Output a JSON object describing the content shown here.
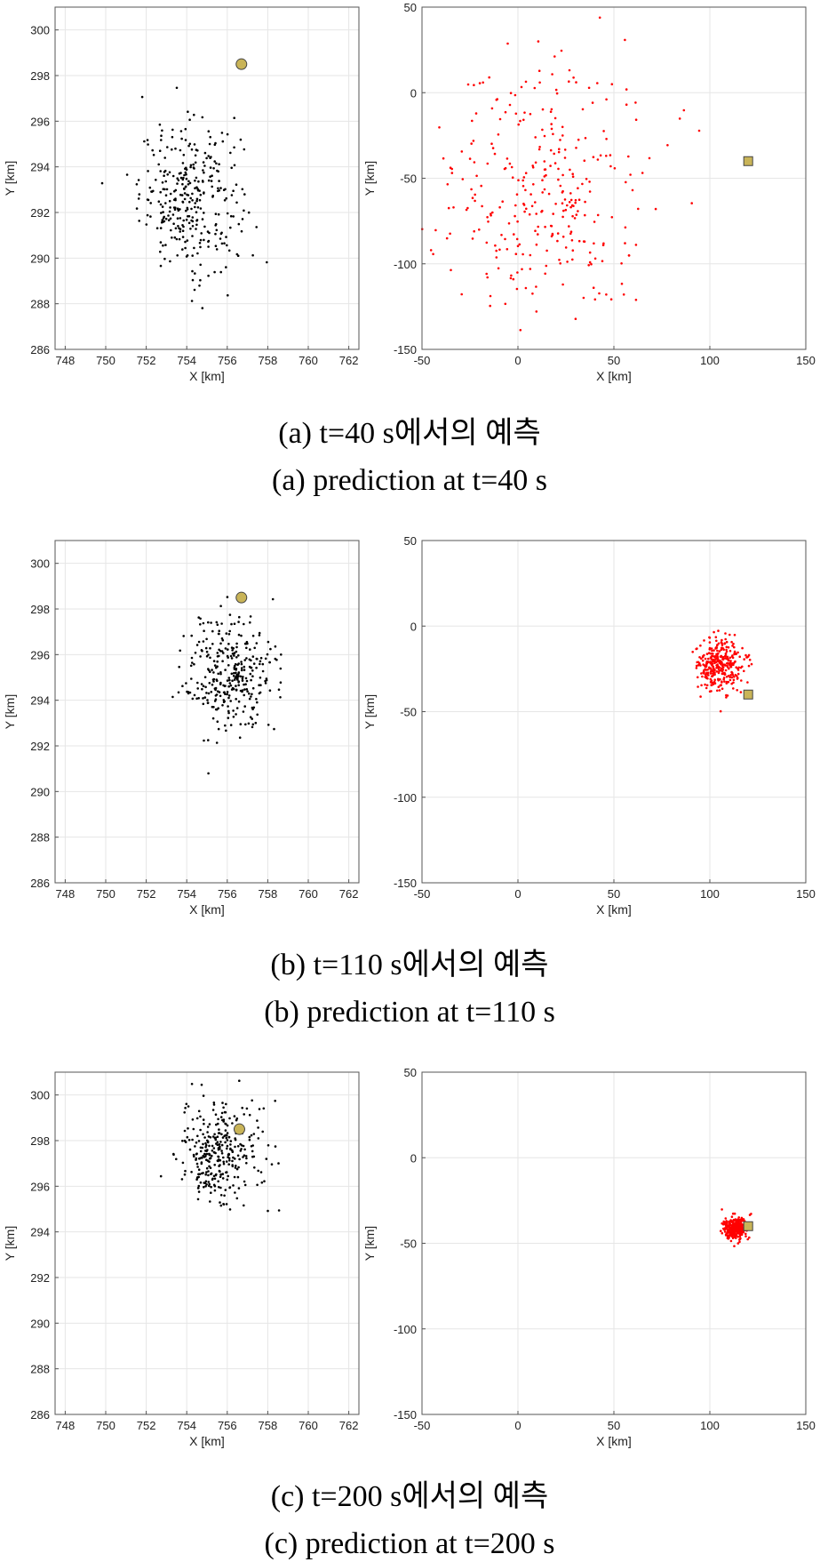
{
  "chart_data": [
    {
      "id": "a-left",
      "type": "scatter",
      "xlabel": "X [km]",
      "ylabel": "Y [km]",
      "xlim": [
        747.5,
        762.5
      ],
      "ylim": [
        286,
        301
      ],
      "xticks": [
        748,
        750,
        752,
        754,
        756,
        758,
        760,
        762
      ],
      "yticks": [
        286,
        288,
        290,
        292,
        294,
        296,
        298,
        300
      ],
      "cluster": {
        "center": [
          754.2,
          292.7
        ],
        "spread": [
          1.25,
          1.6
        ],
        "count": 330,
        "color": "#000000"
      },
      "marker": {
        "x": 756.7,
        "y": 298.5,
        "shape": "circle",
        "color": "#c9b458"
      },
      "grid": true
    },
    {
      "id": "a-right",
      "type": "scatter",
      "xlabel": "X [km]",
      "ylabel": "Y [km]",
      "xlim": [
        -50,
        150
      ],
      "ylim": [
        -150,
        50
      ],
      "xticks": [
        -50,
        0,
        50,
        100,
        150
      ],
      "yticks": [
        -150,
        -100,
        -50,
        0,
        50
      ],
      "cluster": {
        "center": [
          10,
          -55
        ],
        "spread": [
          30,
          40
        ],
        "count": 330,
        "color": "#ff0000"
      },
      "marker": {
        "x": 120,
        "y": -40,
        "shape": "square",
        "color": "#c9b458"
      },
      "grid": true
    },
    {
      "id": "b-left",
      "type": "scatter",
      "xlabel": "X [km]",
      "ylabel": "Y [km]",
      "xlim": [
        747.5,
        762.5
      ],
      "ylim": [
        286,
        301
      ],
      "xticks": [
        748,
        750,
        752,
        754,
        756,
        758,
        760,
        762
      ],
      "yticks": [
        286,
        288,
        290,
        292,
        294,
        296,
        298,
        300
      ],
      "cluster": {
        "center": [
          756.2,
          295.1
        ],
        "spread": [
          1.1,
          1.3
        ],
        "count": 330,
        "color": "#000000"
      },
      "marker": {
        "x": 756.7,
        "y": 298.5,
        "shape": "circle",
        "color": "#c9b458"
      },
      "grid": true
    },
    {
      "id": "b-right",
      "type": "scatter",
      "xlabel": "X [km]",
      "ylabel": "Y [km]",
      "xlim": [
        -50,
        150
      ],
      "ylim": [
        -150,
        50
      ],
      "xticks": [
        -50,
        0,
        50,
        100,
        150
      ],
      "yticks": [
        -150,
        -100,
        -50,
        0,
        50
      ],
      "cluster": {
        "center": [
          105,
          -23
        ],
        "spread": [
          6,
          8
        ],
        "count": 330,
        "color": "#ff0000"
      },
      "marker": {
        "x": 120,
        "y": -40,
        "shape": "square",
        "color": "#c9b458"
      },
      "grid": true
    },
    {
      "id": "c-left",
      "type": "scatter",
      "xlabel": "X [km]",
      "ylabel": "Y [km]",
      "xlim": [
        747.5,
        762.5
      ],
      "ylim": [
        286,
        301
      ],
      "xticks": [
        748,
        750,
        752,
        754,
        756,
        758,
        760,
        762
      ],
      "yticks": [
        286,
        288,
        290,
        292,
        294,
        296,
        298,
        300
      ],
      "cluster": {
        "center": [
          755.6,
          297.5
        ],
        "spread": [
          1.0,
          1.2
        ],
        "count": 330,
        "color": "#000000"
      },
      "marker": {
        "x": 756.6,
        "y": 298.5,
        "shape": "circle",
        "color": "#c9b458"
      },
      "grid": true
    },
    {
      "id": "c-right",
      "type": "scatter",
      "xlabel": "X [km]",
      "ylabel": "Y [km]",
      "xlim": [
        -50,
        150
      ],
      "ylim": [
        -150,
        50
      ],
      "xticks": [
        -50,
        0,
        50,
        100,
        150
      ],
      "yticks": [
        -150,
        -100,
        -50,
        0,
        50
      ],
      "cluster": {
        "center": [
          113,
          -41
        ],
        "spread": [
          3,
          3
        ],
        "count": 330,
        "color": "#ff0000"
      },
      "marker": {
        "x": 120,
        "y": -40,
        "shape": "square",
        "color": "#c9b458"
      },
      "grid": true
    }
  ],
  "captions": [
    {
      "ko": "(a) t=40 s에서의 예측",
      "en": "(a) prediction at t=40 s"
    },
    {
      "ko": "(b) t=110 s에서의 예측",
      "en": "(b) prediction at t=110 s"
    },
    {
      "ko": "(c) t=200 s에서의 예측",
      "en": "(c) prediction at t=200 s"
    }
  ]
}
